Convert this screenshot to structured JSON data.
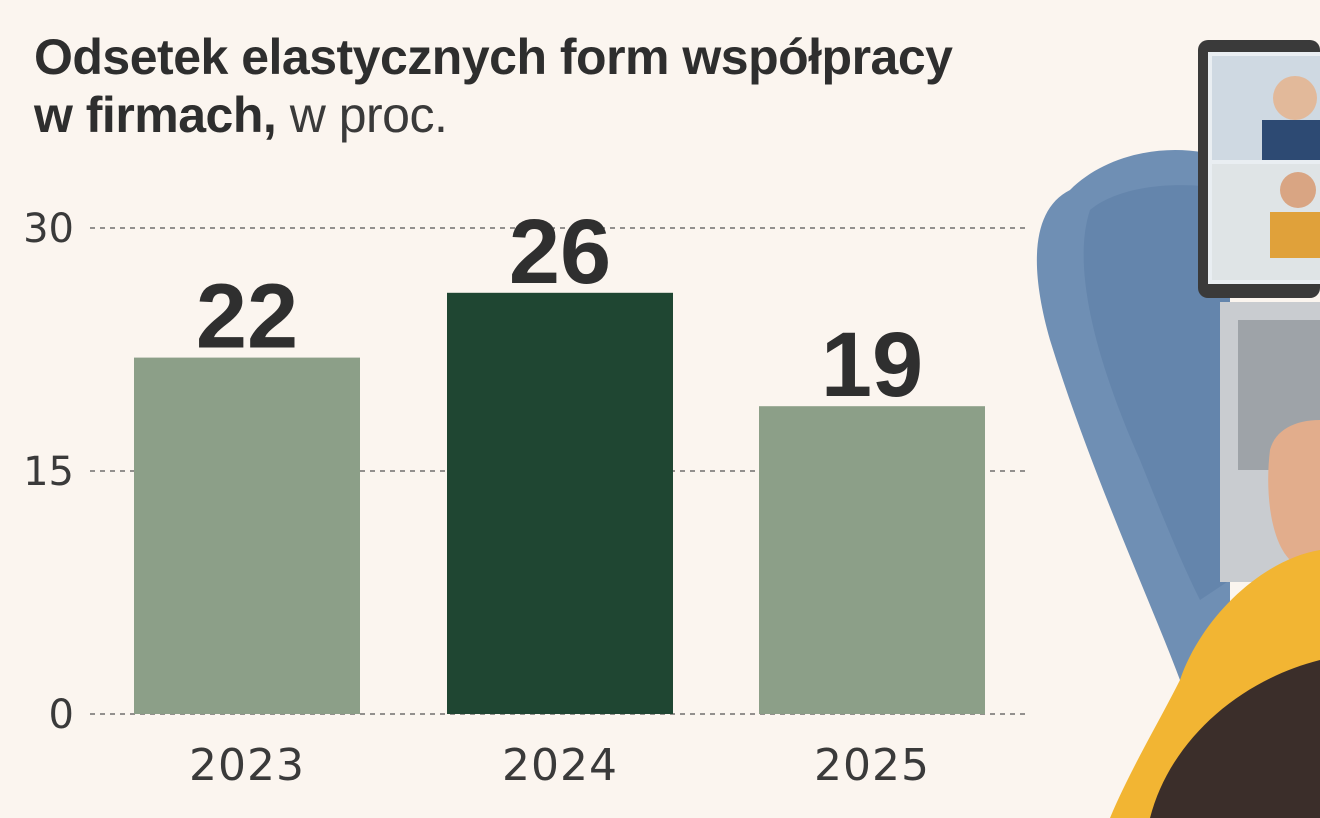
{
  "title": {
    "bold_line1": "Odsetek  elastycznych form współpracy",
    "bold_line2": "w firmach,",
    "light": " w proc."
  },
  "colors": {
    "background": "#fbf5ef",
    "bar_default": "#8c9f88",
    "bar_highlight": "#1f4632",
    "text": "#2f2f2f",
    "grid": "#555555"
  },
  "chart_data": {
    "type": "bar",
    "categories": [
      "2023",
      "2024",
      "2025"
    ],
    "values": [
      22,
      26,
      19
    ],
    "highlight_index": 1,
    "data_labels": [
      "22",
      "26",
      "19"
    ],
    "ylim": [
      0,
      30
    ],
    "yticks": [
      0,
      15,
      30
    ],
    "ytick_labels": [
      "0",
      "15",
      "30"
    ],
    "grid": true,
    "title": "Odsetek  elastycznych form współpracy w firmach, w proc.",
    "xlabel": "",
    "ylabel": ""
  },
  "photo": {
    "icon": "person-with-laptop-video-call-photo"
  }
}
